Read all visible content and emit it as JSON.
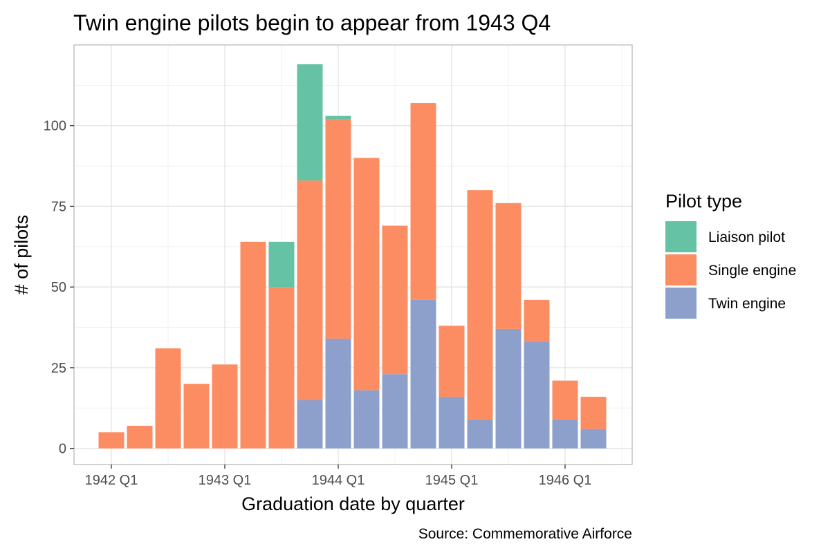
{
  "chart_data": {
    "type": "bar",
    "stacked": true,
    "title": "Twin engine pilots begin to appear from 1943 Q4",
    "xlabel": "Graduation date by quarter",
    "ylabel": "# of pilots",
    "caption": "Source: Commemorative Airforce",
    "categories": [
      "1942 Q1",
      "1942 Q2",
      "1942 Q3",
      "1942 Q4",
      "1943 Q1",
      "1943 Q2",
      "1943 Q3",
      "1943 Q4",
      "1944 Q1",
      "1944 Q2",
      "1944 Q3",
      "1944 Q4",
      "1945 Q1",
      "1945 Q2",
      "1945 Q3",
      "1945 Q4",
      "1946 Q1",
      "1946 Q2"
    ],
    "x_tick_labels": [
      "1942 Q1",
      "1943 Q1",
      "1944 Q1",
      "1945 Q1",
      "1946 Q1"
    ],
    "y_ticks": [
      0,
      25,
      50,
      75,
      100
    ],
    "ylim": [
      -5,
      125
    ],
    "grid": true,
    "legend": {
      "title": "Pilot type",
      "placement": "right",
      "entries": [
        "Liaison pilot",
        "Single engine",
        "Twin engine"
      ]
    },
    "series": [
      {
        "name": "Twin engine",
        "color": "#8DA0CB",
        "values": [
          0,
          0,
          0,
          0,
          0,
          0,
          0,
          15,
          34,
          18,
          23,
          46,
          16,
          9,
          37,
          33,
          9,
          6
        ]
      },
      {
        "name": "Single engine",
        "color": "#FC8D62",
        "values": [
          5,
          7,
          31,
          20,
          26,
          64,
          50,
          68,
          68,
          72,
          46,
          61,
          22,
          71,
          39,
          13,
          12,
          10
        ]
      },
      {
        "name": "Liaison pilot",
        "color": "#66C2A5",
        "values": [
          0,
          0,
          0,
          0,
          0,
          0,
          14,
          36,
          1,
          0,
          0,
          0,
          0,
          0,
          0,
          0,
          0,
          0
        ]
      }
    ]
  }
}
